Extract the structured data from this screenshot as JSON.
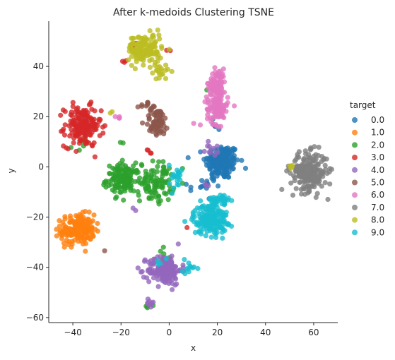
{
  "chart_data": {
    "type": "scatter",
    "title": "After k-medoids Clustering TSNE",
    "xlabel": "x",
    "ylabel": "y",
    "xlim": [
      -50,
      70
    ],
    "ylim": [
      -62,
      58
    ],
    "xticks": [
      -40,
      -20,
      0,
      20,
      40,
      60
    ],
    "yticks": [
      -60,
      -40,
      -20,
      0,
      20,
      40
    ],
    "grid": false,
    "legend": {
      "title": "target",
      "placement": "right"
    },
    "series": [
      {
        "name": "0.0",
        "color": "#1f77b4",
        "clusters": [
          {
            "cx": 22,
            "cy": 2,
            "sx": 3.5,
            "sy": 3.5,
            "n": 180
          },
          {
            "cx": 19,
            "cy": 17,
            "sx": 1.2,
            "sy": 1.5,
            "n": 6
          },
          {
            "cx": 12,
            "cy": -8,
            "sx": 2,
            "sy": 1,
            "n": 6
          },
          {
            "cx": 18,
            "cy": -6,
            "sx": 3,
            "sy": 2,
            "n": 12
          }
        ]
      },
      {
        "name": "1.0",
        "color": "#ff7f0e",
        "clusters": [
          {
            "cx": -38,
            "cy": -25,
            "sx": 3.5,
            "sy": 3,
            "n": 180
          }
        ]
      },
      {
        "name": "2.0",
        "color": "#2ca02c",
        "clusters": [
          {
            "cx": -19,
            "cy": -5,
            "sx": 3.5,
            "sy": 3,
            "n": 140
          },
          {
            "cx": -5,
            "cy": -6,
            "sx": 3.5,
            "sy": 4,
            "n": 100
          },
          {
            "cx": -20,
            "cy": 10,
            "sx": 0.5,
            "sy": 0.5,
            "n": 2
          },
          {
            "cx": -2,
            "cy": -35,
            "sx": 1,
            "sy": 2,
            "n": 6
          },
          {
            "cx": -37,
            "cy": 9,
            "sx": 1.5,
            "sy": 1.5,
            "n": 5
          },
          {
            "cx": -9,
            "cy": -55,
            "sx": 0.8,
            "sy": 1,
            "n": 4
          },
          {
            "cx": 18,
            "cy": 30,
            "sx": 1,
            "sy": 1,
            "n": 3
          }
        ]
      },
      {
        "name": "3.0",
        "color": "#d62728",
        "clusters": [
          {
            "cx": -36,
            "cy": 16,
            "sx": 3.8,
            "sy": 4,
            "n": 170
          },
          {
            "cx": -19,
            "cy": 42,
            "sx": 0.6,
            "sy": 0.4,
            "n": 3
          },
          {
            "cx": -15,
            "cy": 48,
            "sx": 1.2,
            "sy": 1,
            "n": 6
          },
          {
            "cx": -8,
            "cy": 5,
            "sx": 1,
            "sy": 1,
            "n": 4
          },
          {
            "cx": 0,
            "cy": 46,
            "sx": 0.4,
            "sy": 0.4,
            "n": 2
          },
          {
            "cx": 7,
            "cy": -24,
            "sx": 0.4,
            "sy": 0.4,
            "n": 1
          }
        ]
      },
      {
        "name": "4.0",
        "color": "#9467bd",
        "clusters": [
          {
            "cx": -2,
            "cy": -41,
            "sx": 3.5,
            "sy": 3,
            "n": 170
          },
          {
            "cx": -8,
            "cy": -54,
            "sx": 1,
            "sy": 1,
            "n": 8
          },
          {
            "cx": 18,
            "cy": 7,
            "sx": 1.5,
            "sy": 1.5,
            "n": 10
          },
          {
            "cx": -14,
            "cy": -17,
            "sx": 0.5,
            "sy": 0.5,
            "n": 2
          },
          {
            "cx": 15,
            "cy": -7,
            "sx": 1,
            "sy": 1,
            "n": 3
          }
        ]
      },
      {
        "name": "5.0",
        "color": "#8c564b",
        "clusters": [
          {
            "cx": -5,
            "cy": 18,
            "sx": 2.5,
            "sy": 3,
            "n": 70
          },
          {
            "cx": -9,
            "cy": 24,
            "sx": 1.5,
            "sy": 1,
            "n": 10
          },
          {
            "cx": -27,
            "cy": -33,
            "sx": 0.5,
            "sy": 0.5,
            "n": 1
          }
        ]
      },
      {
        "name": "6.0",
        "color": "#e377c2",
        "clusters": [
          {
            "cx": 20,
            "cy": 33,
            "sx": 1.8,
            "sy": 3,
            "n": 90
          },
          {
            "cx": 20,
            "cy": 23,
            "sx": 2.2,
            "sy": 3,
            "n": 90
          },
          {
            "cx": -20,
            "cy": 20,
            "sx": 1.5,
            "sy": 0.5,
            "n": 4
          },
          {
            "cx": 10,
            "cy": 17,
            "sx": 0.4,
            "sy": 0.4,
            "n": 1
          }
        ]
      },
      {
        "name": "7.0",
        "color": "#7f7f7f",
        "clusters": [
          {
            "cx": 58,
            "cy": -2,
            "sx": 3.8,
            "sy": 3.8,
            "n": 220
          }
        ]
      },
      {
        "name": "8.0",
        "color": "#bcbd22",
        "clusters": [
          {
            "cx": -10,
            "cy": 47,
            "sx": 3.5,
            "sy": 3,
            "n": 140
          },
          {
            "cx": -4,
            "cy": 38,
            "sx": 2,
            "sy": 1.5,
            "n": 20
          },
          {
            "cx": 50,
            "cy": 0,
            "sx": 0.8,
            "sy": 0.5,
            "n": 4
          },
          {
            "cx": -24,
            "cy": 22,
            "sx": 0.4,
            "sy": 0.4,
            "n": 2
          }
        ]
      },
      {
        "name": "9.0",
        "color": "#17becf",
        "clusters": [
          {
            "cx": 17,
            "cy": -21,
            "sx": 3.5,
            "sy": 3,
            "n": 180
          },
          {
            "cx": 21,
            "cy": -14,
            "sx": 2,
            "sy": 2,
            "n": 40
          },
          {
            "cx": 3,
            "cy": -4,
            "sx": 1.5,
            "sy": 2.5,
            "n": 20
          },
          {
            "cx": 8,
            "cy": -41,
            "sx": 1.5,
            "sy": 1.5,
            "n": 12
          },
          {
            "cx": -3,
            "cy": -38,
            "sx": 1,
            "sy": 1,
            "n": 4
          }
        ]
      }
    ]
  }
}
